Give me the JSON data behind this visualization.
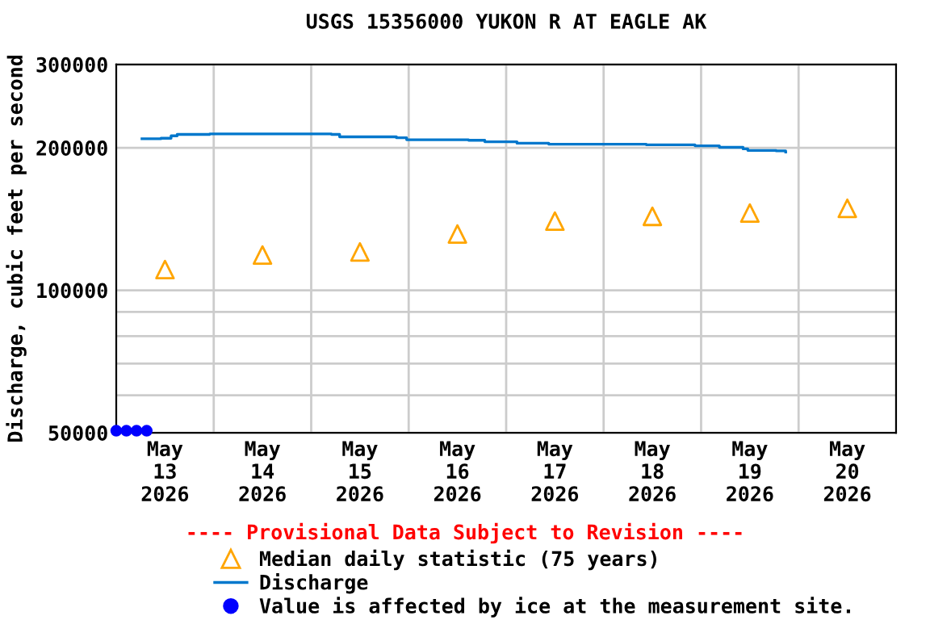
{
  "chart_data": {
    "type": "step",
    "title": "USGS 15356000 YUKON R AT EAGLE AK",
    "ylabel": "Discharge, cubic feet per second",
    "log": "y",
    "grid": true,
    "legend": "bottom",
    "xlim": [
      "2026-05-13",
      "2026-05-21"
    ],
    "xticks": [
      {
        "value": "2026-05-13T12:00",
        "label": "May\n13\n2026"
      },
      {
        "value": "2026-05-14",
        "label": null
      },
      {
        "value": "2026-05-14T12:00",
        "label": "May\n14\n2026"
      },
      {
        "value": "2026-05-15",
        "label": null
      },
      {
        "value": "2026-05-15T12:00",
        "label": "May\n15\n2026"
      },
      {
        "value": "2026-05-16",
        "label": null
      },
      {
        "value": "2026-05-16T12:00",
        "label": "May\n16\n2026"
      },
      {
        "value": "2026-05-17",
        "label": null
      },
      {
        "value": "2026-05-17T12:00",
        "label": "May\n17\n2026"
      },
      {
        "value": "2026-05-18",
        "label": null
      },
      {
        "value": "2026-05-18T12:00",
        "label": "May\n18\n2026"
      },
      {
        "value": "2026-05-19",
        "label": null
      },
      {
        "value": "2026-05-19T12:00",
        "label": "May\n19\n2026"
      },
      {
        "value": "2026-05-20",
        "label": null
      },
      {
        "value": "2026-05-20T12:00",
        "label": "May\n20\n2026"
      }
    ],
    "ylim": [
      50000,
      300000
    ],
    "yticks": [
      50000,
      {
        "value": 60000,
        "label": null
      },
      {
        "value": 70000,
        "label": null
      },
      {
        "value": 80000,
        "label": null
      },
      {
        "value": 90000,
        "label": null
      },
      100000,
      200000,
      300000
    ],
    "annotations": [
      "---- Provisional Data Subject to Revision ----"
    ],
    "series": [
      {
        "name": "Median daily statistic (75 years)",
        "type": "scatter",
        "marker": "triangle",
        "color": "#ffa500",
        "x": [
          "2026-05-13T12:00",
          "2026-05-14T12:00",
          "2026-05-15T12:00",
          "2026-05-16T12:00",
          "2026-05-17T12:00",
          "2026-05-18T12:00",
          "2026-05-19T12:00",
          "2026-05-20T12:00"
        ],
        "values": [
          110600,
          118700,
          120500,
          131500,
          140000,
          143300,
          145600,
          149000
        ]
      },
      {
        "name": "Discharge",
        "color": "#0077cc",
        "x": [
          "2026-05-13T06:20",
          "2026-05-13T11:00",
          "2026-05-13T13:30",
          "2026-05-13T15:00",
          "2026-05-13T23:00",
          "2026-05-14T19:00",
          "2026-05-15T05:00",
          "2026-05-15T07:00",
          "2026-05-15T21:00",
          "2026-05-15T23:30",
          "2026-05-16T14:45",
          "2026-05-16T18:45",
          "2026-05-17T02:40",
          "2026-05-17T10:30",
          "2026-05-18T10:30",
          "2026-05-18T22:30",
          "2026-05-19T04:30",
          "2026-05-19T10:20",
          "2026-05-19T11:30",
          "2026-05-19T18:30",
          "2026-05-19T20:50"
        ],
        "values": [
          209000,
          209500,
          212000,
          213500,
          214000,
          214000,
          213500,
          211000,
          210000,
          208000,
          207500,
          206000,
          204500,
          203500,
          203000,
          202000,
          200500,
          199000,
          197500,
          197000,
          196000
        ]
      },
      {
        "name": "Value is affected by ice at the measurement site.",
        "type": "scatter",
        "marker": "circle",
        "color": "#0000ff",
        "x": [
          "2026-05-13T00:00",
          "2026-05-13T02:30",
          "2026-05-13T05:00",
          "2026-05-13T07:30"
        ],
        "values": [
          50500,
          50500,
          50500,
          50500
        ]
      }
    ]
  }
}
